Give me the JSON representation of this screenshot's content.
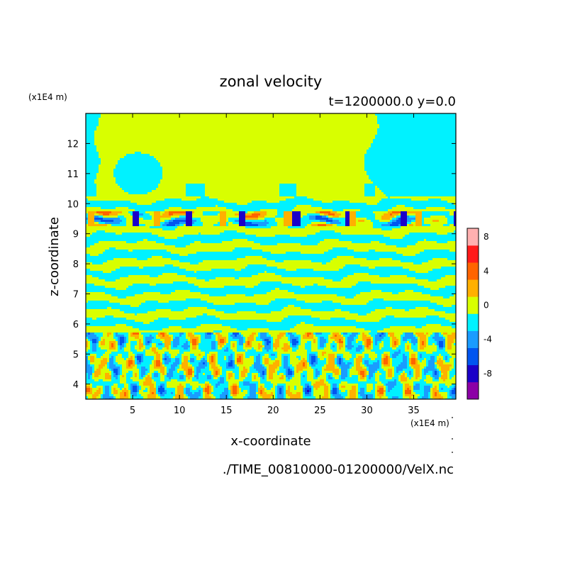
{
  "chart_data": {
    "type": "heatmap",
    "title": "zonal velocity",
    "subtitle": "t=1200000.0 y=0.0",
    "xlabel": "x-coordinate",
    "ylabel": "z-coordinate",
    "x_units": "(x1E4 m)",
    "y_units": "(x1E4 m)",
    "source_file": "./TIME_00810000-01200000/VelX.nc",
    "xlim": [
      0,
      39.5
    ],
    "ylim": [
      3.5,
      13
    ],
    "x_ticks": [
      5,
      10,
      15,
      20,
      25,
      30,
      35
    ],
    "y_ticks": [
      4,
      5,
      6,
      7,
      8,
      9,
      10,
      11,
      12
    ],
    "grid": false,
    "colorbar": {
      "levels": [
        -10,
        -8,
        -6,
        -4,
        -2,
        0,
        2,
        4,
        6,
        8,
        10
      ],
      "tick_labels": [
        {
          "value": 8,
          "label": "8"
        },
        {
          "value": 4,
          "label": "4"
        },
        {
          "value": 0,
          "label": "0"
        },
        {
          "value": -4,
          "label": "-4"
        },
        {
          "value": -8,
          "label": "-8"
        }
      ],
      "colors": [
        "#8c00a6",
        "#1b00c8",
        "#0055f0",
        "#1a9cff",
        "#00f2ff",
        "#d8ff00",
        "#ffb000",
        "#ff6400",
        "#ff1a1a",
        "#ffb0b0"
      ]
    },
    "regions": [
      {
        "z_range": [
          10.2,
          13.0
        ],
        "description": "mostly 0 to 2 m/s with a broad -2 to 0 region at x > 31 and a patch near x = 3-8, z = 10.5-11.5"
      },
      {
        "z_range": [
          5.8,
          10.2
        ],
        "description": "thin horizontal layers alternating between -2 to 0 and 0 to 2, strongest (about -8 and +4) near z = 9.5"
      },
      {
        "z_range": [
          3.5,
          5.8
        ],
        "description": "vertically tilted cells alternating -6 to +6"
      }
    ]
  }
}
